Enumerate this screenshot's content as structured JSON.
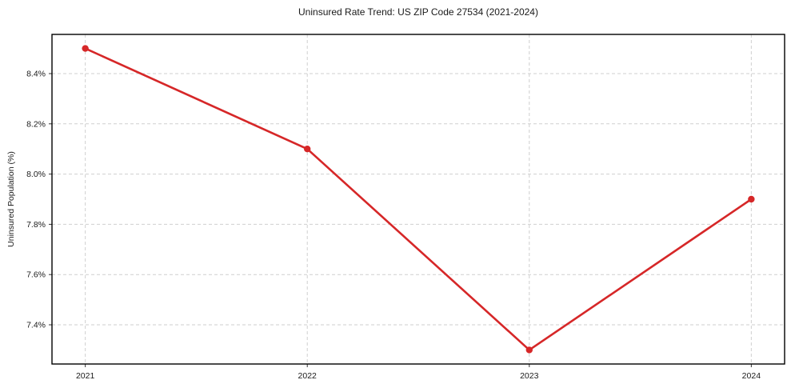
{
  "chart_data": {
    "type": "line",
    "title": "Uninsured Rate Trend: US ZIP Code 27534 (2021-2024)",
    "xlabel": "",
    "ylabel": "Uninsured Population (%)",
    "x": [
      2021,
      2022,
      2023,
      2024
    ],
    "values": [
      8.5,
      8.1,
      7.3,
      7.9
    ],
    "xticks": [
      2021,
      2022,
      2023,
      2024
    ],
    "xtick_labels": [
      "2021",
      "2022",
      "2023",
      "2024"
    ],
    "yticks": [
      7.4,
      7.6,
      7.8,
      8.0,
      8.2,
      8.4
    ],
    "ytick_labels": [
      "7.4%",
      "7.6%",
      "7.8%",
      "8.0%",
      "8.2%",
      "8.4%"
    ],
    "xlim": [
      2020.85,
      2024.15
    ],
    "ylim": [
      7.244,
      8.556
    ],
    "grid": true,
    "legend_position": "none",
    "line_color": "#d62728",
    "marker": "circle",
    "grid_color": "#cfcfcf",
    "spine_color": "#000000",
    "tick_color": "#333333",
    "text_color": "#1a1a1a"
  }
}
